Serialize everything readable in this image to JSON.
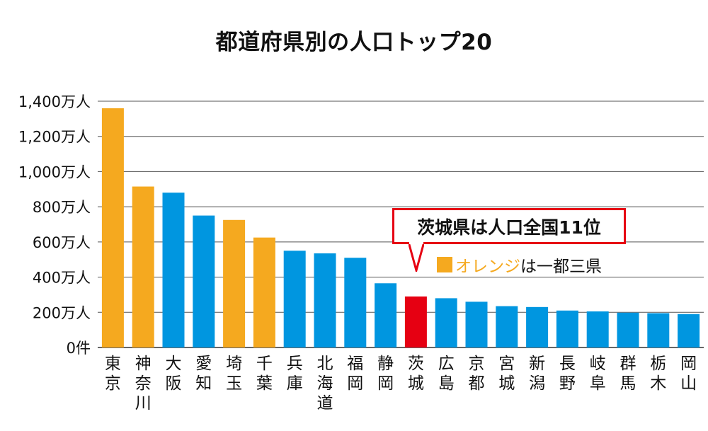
{
  "chart_data": {
    "type": "bar",
    "title": "都道府県別の人口トップ20",
    "categories": [
      "東京",
      "神奈川",
      "大阪",
      "愛知",
      "埼玉",
      "千葉",
      "兵庫",
      "北海道",
      "福岡",
      "静岡",
      "茨城",
      "広島",
      "京都",
      "宮城",
      "新潟",
      "長野",
      "岐阜",
      "群馬",
      "栃木",
      "岡山"
    ],
    "values": [
      1360,
      915,
      880,
      750,
      725,
      625,
      550,
      535,
      510,
      365,
      290,
      280,
      260,
      235,
      230,
      210,
      205,
      198,
      195,
      190
    ],
    "bar_groups": [
      "orange",
      "orange",
      "blue",
      "blue",
      "orange",
      "orange",
      "blue",
      "blue",
      "blue",
      "blue",
      "red",
      "blue",
      "blue",
      "blue",
      "blue",
      "blue",
      "blue",
      "blue",
      "blue",
      "blue"
    ],
    "colors": {
      "orange": "#f5a91f",
      "blue": "#0096e0",
      "red": "#e60012"
    },
    "yticks": [
      0,
      200,
      400,
      600,
      800,
      1000,
      1200,
      1400
    ],
    "ytick_labels": [
      "0件",
      "200万人",
      "400万人",
      "600万人",
      "800万人",
      "1,000万人",
      "1,200万人",
      "1,400万人"
    ],
    "ylim": [
      0,
      1400
    ],
    "grid": true,
    "xlabel": "",
    "ylabel": "",
    "annotation": {
      "callout_text": "茨城県は人口全国11位",
      "callout_color": "#e60012",
      "legend_highlight": "オレンジ",
      "legend_rest": "は一都三県",
      "legend_color": "#f5a91f"
    }
  }
}
